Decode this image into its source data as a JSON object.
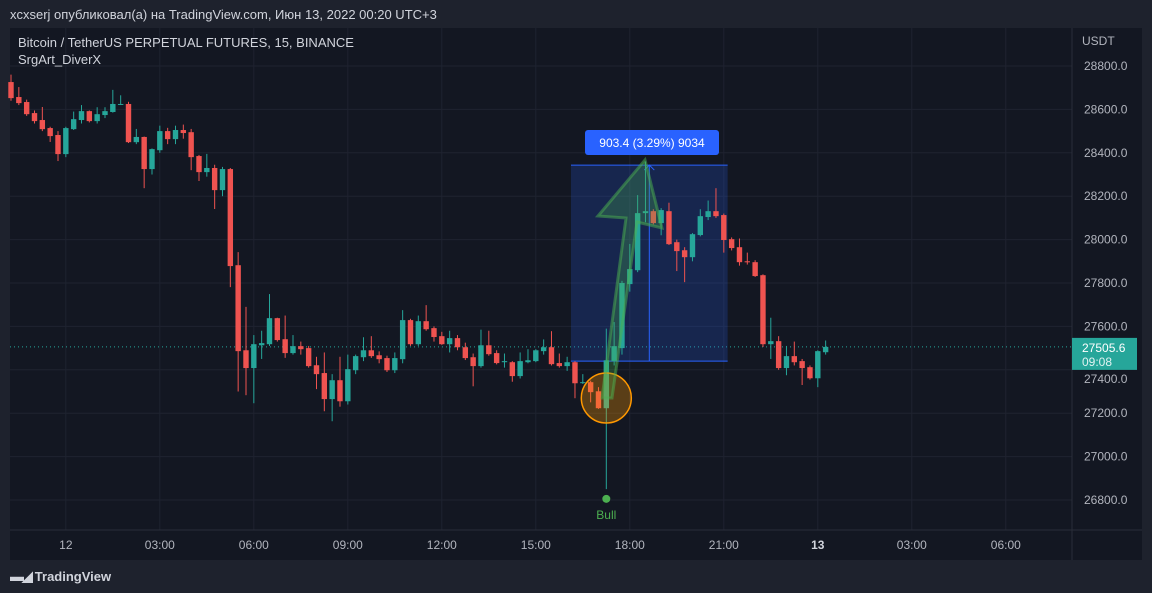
{
  "header": {
    "caption": "xcxserj опубликовал(а) на TradingView.com, Июн 13, 2022 00:20 UTC+3"
  },
  "legend": {
    "symbol": "Bitcoin / TetherUS PERPETUAL FUTURES, 15, BINANCE",
    "indicator": "SrgArt_DiverX"
  },
  "footer": {
    "logo": "TradingView"
  },
  "colors": {
    "up": "#26a69a",
    "down": "#ef5350",
    "background": "#131722",
    "measure": "#2962ff",
    "signal": "#4caf50",
    "highlight": "#ff9800"
  },
  "chart_data": {
    "type": "candlestick",
    "currency": "USDT",
    "interval": "15",
    "ylim": [
      26680,
      28900
    ],
    "yticks": [
      "26800.0",
      "27000.0",
      "27200.0",
      "27400.0",
      "27600.0",
      "27800.0",
      "28000.0",
      "28200.0",
      "28400.0",
      "28600.0",
      "28800.0"
    ],
    "xticks": [
      {
        "label": "12",
        "bold": false,
        "index": 7
      },
      {
        "label": "03:00",
        "bold": false,
        "index": 19
      },
      {
        "label": "06:00",
        "bold": false,
        "index": 31
      },
      {
        "label": "09:00",
        "bold": false,
        "index": 43
      },
      {
        "label": "12:00",
        "bold": false,
        "index": 55
      },
      {
        "label": "15:00",
        "bold": false,
        "index": 67
      },
      {
        "label": "18:00",
        "bold": false,
        "index": 79
      },
      {
        "label": "21:00",
        "bold": false,
        "index": 91
      },
      {
        "label": "13",
        "bold": true,
        "index": 103
      },
      {
        "label": "03:00",
        "bold": false,
        "index": 115
      },
      {
        "label": "06:00",
        "bold": false,
        "index": 127
      }
    ],
    "grid": true,
    "last_price": {
      "value": "27505.6",
      "countdown": "09:08"
    },
    "candles_ohlc": [
      [
        28726,
        28760,
        28640,
        28652
      ],
      [
        28657,
        28703,
        28620,
        28629
      ],
      [
        28634,
        28645,
        28570,
        28578
      ],
      [
        28583,
        28595,
        28535,
        28546
      ],
      [
        28551,
        28611,
        28500,
        28509
      ],
      [
        28514,
        28520,
        28450,
        28477
      ],
      [
        28482,
        28500,
        28362,
        28394
      ],
      [
        28394,
        28520,
        28380,
        28514
      ],
      [
        28509,
        28590,
        28505,
        28555
      ],
      [
        28551,
        28620,
        28535,
        28592
      ],
      [
        28592,
        28595,
        28540,
        28546
      ],
      [
        28546,
        28610,
        28535,
        28578
      ],
      [
        28574,
        28610,
        28560,
        28592
      ],
      [
        28588,
        28690,
        28585,
        28625
      ],
      [
        28625,
        28665,
        28620,
        28625
      ],
      [
        28625,
        28635,
        28445,
        28449
      ],
      [
        28449,
        28510,
        28440,
        28473
      ],
      [
        28473,
        28475,
        28237,
        28325
      ],
      [
        28325,
        28420,
        28300,
        28417
      ],
      [
        28412,
        28525,
        28400,
        28500
      ],
      [
        28500,
        28515,
        28440,
        28463
      ],
      [
        28463,
        28525,
        28440,
        28505
      ],
      [
        28505,
        28530,
        28465,
        28491
      ],
      [
        28495,
        28510,
        28320,
        28380
      ],
      [
        28385,
        28390,
        28270,
        28311
      ],
      [
        28311,
        28395,
        28290,
        28330
      ],
      [
        28330,
        28345,
        28141,
        28228
      ],
      [
        28228,
        28335,
        28200,
        28325
      ],
      [
        28325,
        28330,
        27781,
        27878
      ],
      [
        27882,
        27942,
        27300,
        27486
      ],
      [
        27490,
        27690,
        27283,
        27408
      ],
      [
        27408,
        27560,
        27246,
        27518
      ],
      [
        27513,
        27580,
        27450,
        27523
      ],
      [
        27518,
        27749,
        27510,
        27638
      ],
      [
        27638,
        27640,
        27530,
        27537
      ],
      [
        27541,
        27650,
        27455,
        27477
      ],
      [
        27477,
        27560,
        27470,
        27509
      ],
      [
        27509,
        27530,
        27470,
        27495
      ],
      [
        27500,
        27510,
        27410,
        27417
      ],
      [
        27421,
        27460,
        27311,
        27380
      ],
      [
        27385,
        27480,
        27209,
        27265
      ],
      [
        27265,
        27380,
        27163,
        27352
      ],
      [
        27352,
        27460,
        27230,
        27255
      ],
      [
        27255,
        27470,
        27240,
        27403
      ],
      [
        27398,
        27470,
        27380,
        27463
      ],
      [
        27458,
        27550,
        27440,
        27490
      ],
      [
        27490,
        27555,
        27455,
        27463
      ],
      [
        27467,
        27485,
        27430,
        27449
      ],
      [
        27454,
        27465,
        27390,
        27398
      ],
      [
        27398,
        27480,
        27385,
        27454
      ],
      [
        27449,
        27675,
        27430,
        27629
      ],
      [
        27629,
        27635,
        27510,
        27518
      ],
      [
        27518,
        27650,
        27510,
        27624
      ],
      [
        27624,
        27698,
        27580,
        27587
      ],
      [
        27592,
        27600,
        27530,
        27551
      ],
      [
        27555,
        27575,
        27515,
        27518
      ],
      [
        27518,
        27580,
        27480,
        27546
      ],
      [
        27546,
        27560,
        27490,
        27504
      ],
      [
        27504,
        27525,
        27445,
        27454
      ],
      [
        27458,
        27475,
        27324,
        27417
      ],
      [
        27417,
        27585,
        27410,
        27513
      ],
      [
        27513,
        27580,
        27465,
        27472
      ],
      [
        27477,
        27490,
        27425,
        27431
      ],
      [
        27435,
        27475,
        27410,
        27440
      ],
      [
        27435,
        27440,
        27345,
        27371
      ],
      [
        27371,
        27480,
        27360,
        27440
      ],
      [
        27435,
        27495,
        27430,
        27444
      ],
      [
        27440,
        27495,
        27435,
        27490
      ],
      [
        27486,
        27540,
        27470,
        27504
      ],
      [
        27504,
        27578,
        27420,
        27426
      ],
      [
        27431,
        27475,
        27410,
        27417
      ],
      [
        27417,
        27460,
        27395,
        27435
      ],
      [
        27435,
        27440,
        27269,
        27338
      ],
      [
        27343,
        27380,
        27335,
        27343
      ],
      [
        27343,
        27350,
        27250,
        27297
      ],
      [
        27301,
        27320,
        27220,
        27223
      ],
      [
        27223,
        27590,
        26850,
        27444
      ],
      [
        27440,
        27620,
        27420,
        27509
      ],
      [
        27500,
        27810,
        27470,
        27800
      ],
      [
        27795,
        27980,
        27760,
        27864
      ],
      [
        27859,
        28205,
        27850,
        28122
      ],
      [
        28122,
        28360,
        28080,
        28131
      ],
      [
        28131,
        28140,
        28070,
        28076
      ],
      [
        28076,
        28145,
        28020,
        28136
      ],
      [
        28131,
        28170,
        27975,
        27979
      ],
      [
        27988,
        28000,
        27855,
        27947
      ],
      [
        27951,
        27965,
        27804,
        27919
      ],
      [
        27919,
        28030,
        27900,
        28025
      ],
      [
        28021,
        28140,
        28015,
        28108
      ],
      [
        28104,
        28180,
        28090,
        28131
      ],
      [
        28131,
        28237,
        28100,
        28108
      ],
      [
        28113,
        28120,
        27940,
        27998
      ],
      [
        28002,
        28010,
        27950,
        27961
      ],
      [
        27965,
        28005,
        27880,
        27896
      ],
      [
        27900,
        27940,
        27885,
        27896
      ],
      [
        27896,
        27905,
        27828,
        27832
      ],
      [
        27836,
        27840,
        27505,
        27518
      ],
      [
        27518,
        27640,
        27450,
        27532
      ],
      [
        27532,
        27555,
        27400,
        27408
      ],
      [
        27408,
        27510,
        27375,
        27463
      ],
      [
        27463,
        27530,
        27420,
        27435
      ],
      [
        27440,
        27450,
        27330,
        27408
      ],
      [
        27412,
        27420,
        27355,
        27361
      ],
      [
        27361,
        27490,
        27320,
        27486
      ],
      [
        27481,
        27535,
        27470,
        27505.6
      ]
    ],
    "measure": {
      "label": "903.4 (3.29%) 9034",
      "from_price": 27440,
      "to_price": 28343.4,
      "from_index": 72,
      "to_index": 92,
      "line_index": 82
    },
    "signal": {
      "label": "Bull",
      "index": 76,
      "price": 26810
    },
    "highlight_circle": {
      "index": 76,
      "price": 27270
    }
  }
}
